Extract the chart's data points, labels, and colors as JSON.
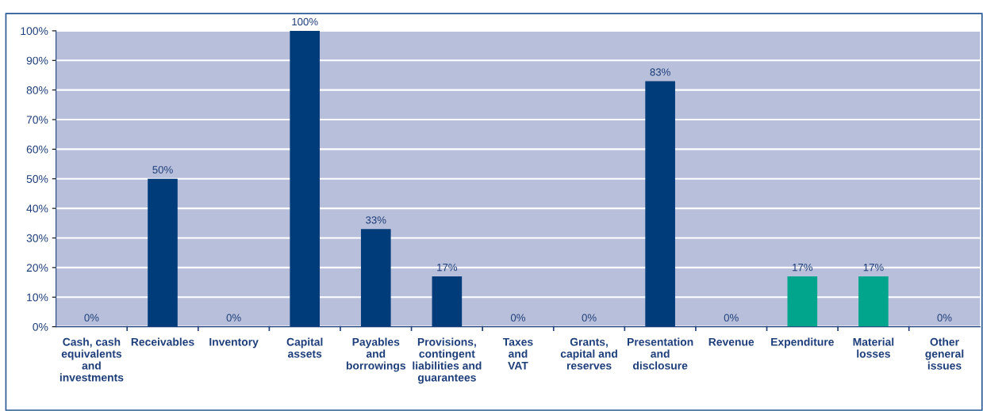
{
  "chart_data": {
    "type": "bar",
    "categories": [
      "Cash, cash\nequivalents\nand\ninvestments",
      "Receivables",
      "Inventory",
      "Capital\nassets",
      "Payables\nand\nborrowings",
      "Provisions,\ncontingent\nliabilities and\nguarantees",
      "Taxes\nand\nVAT",
      "Grants,\ncapital and\nreserves",
      "Presentation\nand\ndisclosure",
      "Revenue",
      "Expenditure",
      "Material\nlosses",
      "Other\ngeneral\nissues"
    ],
    "values": [
      0,
      50,
      0,
      100,
      33,
      17,
      0,
      0,
      83,
      0,
      17,
      17,
      0
    ],
    "colors": [
      "#003b7a",
      "#003b7a",
      "#003b7a",
      "#003b7a",
      "#003b7a",
      "#003b7a",
      "#003b7a",
      "#003b7a",
      "#003b7a",
      "#003b7a",
      "#00a58c",
      "#00a58c",
      "#003b7a"
    ],
    "value_labels": [
      "0%",
      "50%",
      "0%",
      "100%",
      "33%",
      "17%",
      "0%",
      "0%",
      "83%",
      "0%",
      "17%",
      "17%",
      "0%"
    ],
    "ylim": [
      0,
      100
    ],
    "yticks": [
      {
        "value": 0,
        "label": "0%"
      },
      {
        "value": 10,
        "label": "10%"
      },
      {
        "value": 20,
        "label": "20%"
      },
      {
        "value": 30,
        "label": "30%"
      },
      {
        "value": 40,
        "label": "40%"
      },
      {
        "value": 50,
        "label": "50%"
      },
      {
        "value": 60,
        "label": "60%"
      },
      {
        "value": 70,
        "label": "70%"
      },
      {
        "value": 80,
        "label": "80%"
      },
      {
        "value": 90,
        "label": "90%"
      },
      {
        "value": 100,
        "label": "100%"
      }
    ],
    "grid": "y",
    "legend": false
  }
}
